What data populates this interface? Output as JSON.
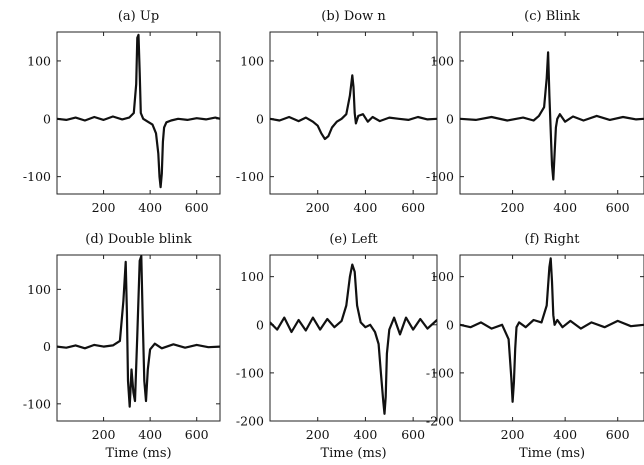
{
  "chart_data": [
    {
      "type": "line",
      "title": "(a) Up",
      "xlabel": "",
      "xlim": [
        0,
        700
      ],
      "ylim": [
        -130,
        150
      ],
      "xticks": [
        200,
        400,
        600
      ],
      "xtick_labels": [
        "200",
        "400",
        "600"
      ],
      "yticks": [
        -100,
        0,
        100
      ],
      "ytick_labels": [
        "-100",
        "0",
        "100"
      ],
      "series": [
        {
          "x": [
            0,
            40,
            80,
            120,
            160,
            200,
            240,
            280,
            310,
            330,
            340,
            345,
            350,
            355,
            360,
            370,
            390,
            410,
            425,
            435,
            440,
            445,
            450,
            455,
            460,
            470,
            490,
            520,
            560,
            600,
            640,
            680,
            700
          ],
          "y": [
            0,
            -2,
            2,
            -3,
            3,
            -2,
            4,
            -1,
            2,
            10,
            60,
            140,
            145,
            80,
            10,
            0,
            -5,
            -10,
            -25,
            -60,
            -100,
            -118,
            -95,
            -40,
            -15,
            -6,
            -3,
            0,
            -2,
            1,
            -1,
            2,
            0
          ]
        }
      ]
    },
    {
      "type": "line",
      "title": "(b) Dow n",
      "xlabel": "",
      "xlim": [
        0,
        700
      ],
      "ylim": [
        -130,
        150
      ],
      "xticks": [
        200,
        400,
        600
      ],
      "xtick_labels": [
        "200",
        "400",
        "600"
      ],
      "yticks": [
        -100,
        0,
        100
      ],
      "ytick_labels": [
        "-100",
        "0",
        "100"
      ],
      "series": [
        {
          "x": [
            0,
            40,
            80,
            120,
            150,
            180,
            200,
            215,
            230,
            245,
            260,
            280,
            300,
            320,
            335,
            345,
            350,
            355,
            360,
            370,
            390,
            410,
            430,
            460,
            500,
            540,
            580,
            620,
            660,
            700
          ],
          "y": [
            0,
            -3,
            3,
            -4,
            2,
            -5,
            -12,
            -25,
            -35,
            -30,
            -15,
            -5,
            0,
            8,
            40,
            75,
            55,
            10,
            -8,
            5,
            8,
            -5,
            3,
            -4,
            2,
            0,
            -2,
            3,
            -1,
            0
          ]
        }
      ]
    },
    {
      "type": "line",
      "title": "(c) Blink",
      "xlabel": "",
      "xlim": [
        0,
        700
      ],
      "ylim": [
        -130,
        150
      ],
      "xticks": [
        200,
        400,
        600
      ],
      "xtick_labels": [
        "200",
        "400",
        "600"
      ],
      "yticks": [
        -100,
        0,
        100
      ],
      "ytick_labels": [
        "-100",
        "0",
        "100"
      ],
      "series": [
        {
          "x": [
            0,
            60,
            120,
            180,
            240,
            280,
            300,
            320,
            330,
            335,
            340,
            345,
            350,
            355,
            360,
            365,
            370,
            380,
            400,
            430,
            470,
            520,
            570,
            620,
            670,
            700
          ],
          "y": [
            0,
            -2,
            3,
            -3,
            2,
            -3,
            5,
            20,
            70,
            115,
            40,
            -20,
            -80,
            -105,
            -60,
            -15,
            0,
            8,
            -5,
            4,
            -3,
            5,
            -2,
            3,
            -1,
            0
          ]
        }
      ]
    },
    {
      "type": "line",
      "title": "(d) Double blink",
      "xlabel": "Time (ms)",
      "xlim": [
        0,
        700
      ],
      "ylim": [
        -130,
        160
      ],
      "xticks": [
        200,
        400,
        600
      ],
      "xtick_labels": [
        "200",
        "400",
        "600"
      ],
      "yticks": [
        -100,
        0,
        100
      ],
      "ytick_labels": [
        "-100",
        "0",
        "100"
      ],
      "series": [
        {
          "x": [
            0,
            40,
            80,
            120,
            160,
            200,
            240,
            270,
            285,
            295,
            300,
            305,
            312,
            320,
            328,
            335,
            345,
            355,
            362,
            368,
            375,
            382,
            390,
            400,
            420,
            450,
            500,
            550,
            600,
            650,
            700
          ],
          "y": [
            0,
            -2,
            2,
            -3,
            3,
            0,
            2,
            10,
            80,
            148,
            60,
            -60,
            -105,
            -40,
            -80,
            -95,
            20,
            150,
            158,
            50,
            -60,
            -95,
            -40,
            -5,
            5,
            -3,
            4,
            -2,
            3,
            -1,
            0
          ]
        }
      ]
    },
    {
      "type": "line",
      "title": "(e) Left",
      "xlabel": "Time (ms)",
      "xlim": [
        0,
        700
      ],
      "ylim": [
        -200,
        145
      ],
      "xticks": [
        200,
        400,
        600
      ],
      "xtick_labels": [
        "200",
        "400",
        "600"
      ],
      "yticks": [
        -200,
        -100,
        0,
        100
      ],
      "ytick_labels": [
        "-200",
        "-100",
        "0",
        "100"
      ],
      "series": [
        {
          "x": [
            0,
            30,
            60,
            90,
            120,
            150,
            180,
            210,
            240,
            270,
            300,
            320,
            335,
            345,
            355,
            365,
            380,
            400,
            420,
            440,
            455,
            465,
            475,
            480,
            485,
            490,
            500,
            520,
            545,
            570,
            600,
            630,
            660,
            700
          ],
          "y": [
            5,
            -10,
            15,
            -15,
            10,
            -12,
            15,
            -10,
            12,
            -5,
            8,
            40,
            100,
            125,
            110,
            40,
            5,
            -5,
            0,
            -15,
            -40,
            -100,
            -160,
            -185,
            -150,
            -60,
            -10,
            15,
            -20,
            15,
            -10,
            12,
            -8,
            10
          ]
        }
      ]
    },
    {
      "type": "line",
      "title": "(f) Right",
      "xlabel": "Time (ms)",
      "xlim": [
        0,
        700
      ],
      "ylim": [
        -200,
        145
      ],
      "xticks": [
        200,
        400,
        600
      ],
      "xtick_labels": [
        "200",
        "400",
        "600"
      ],
      "yticks": [
        -200,
        -100,
        0,
        100
      ],
      "ytick_labels": [
        "-200",
        "-100",
        "0",
        "100"
      ],
      "series": [
        {
          "x": [
            0,
            40,
            80,
            120,
            160,
            185,
            195,
            200,
            205,
            210,
            215,
            225,
            250,
            280,
            310,
            330,
            340,
            345,
            350,
            355,
            360,
            370,
            390,
            420,
            460,
            500,
            550,
            600,
            650,
            700
          ],
          "y": [
            0,
            -5,
            5,
            -8,
            0,
            -30,
            -110,
            -160,
            -120,
            -50,
            -5,
            5,
            -5,
            10,
            5,
            40,
            120,
            138,
            90,
            20,
            0,
            10,
            -5,
            8,
            -8,
            5,
            -5,
            8,
            -3,
            0
          ]
        }
      ]
    }
  ]
}
